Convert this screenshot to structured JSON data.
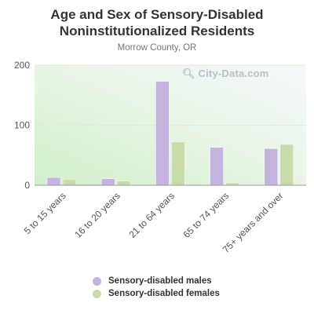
{
  "chart_data": {
    "type": "bar",
    "title": "Age and Sex of Sensory-Disabled Noninstitutionalized Residents",
    "subtitle": "Morrow County, OR",
    "categories": [
      "5 to 15 years",
      "16 to 20 years",
      "21 to 64 years",
      "65 to 74 years",
      "75+ years and over"
    ],
    "series": [
      {
        "name": "Sensory-disabled males",
        "values": [
          13,
          11,
          173,
          63,
          61
        ],
        "color": "#c3b3dd"
      },
      {
        "name": "Sensory-disabled females",
        "values": [
          10,
          7,
          72,
          4,
          68
        ],
        "color": "#c9dbab"
      }
    ],
    "ylim": [
      0,
      200
    ],
    "yticks": [
      0,
      100,
      200
    ],
    "xlabel": "",
    "ylabel": "",
    "grid": true,
    "legend": "bottom"
  },
  "watermark": {
    "text": "City-Data.com",
    "icon": "magnifier-icon"
  },
  "colors": {
    "plot_bg_top": "#eef3f9",
    "plot_bg_bottom": "#d4f0cf",
    "axis": "#555555"
  }
}
